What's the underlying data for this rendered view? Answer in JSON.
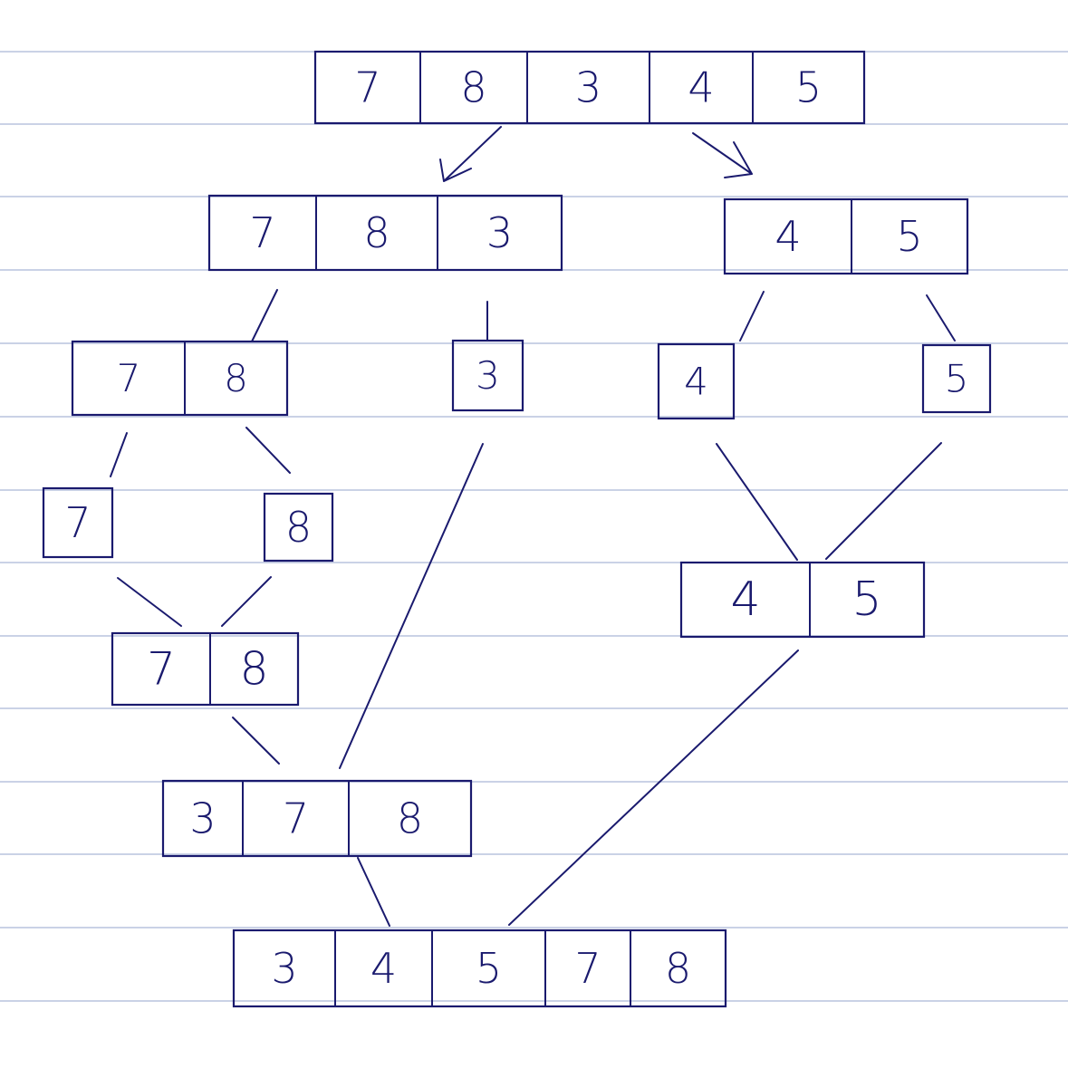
{
  "diagram": {
    "rows": [
      {
        "id": "r0",
        "cells": [
          "7",
          "8",
          "3",
          "4",
          "5"
        ]
      },
      {
        "id": "r1a",
        "cells": [
          "7",
          "8",
          "3"
        ]
      },
      {
        "id": "r1b",
        "cells": [
          "4",
          "5"
        ]
      },
      {
        "id": "r2a",
        "cells": [
          "7",
          "8"
        ]
      },
      {
        "id": "r2b",
        "cells": [
          "3"
        ]
      },
      {
        "id": "r2c",
        "cells": [
          "4"
        ]
      },
      {
        "id": "r2d",
        "cells": [
          "5"
        ]
      },
      {
        "id": "r3a",
        "cells": [
          "7"
        ]
      },
      {
        "id": "r3b",
        "cells": [
          "8"
        ]
      },
      {
        "id": "r4a",
        "cells": [
          "7",
          "8"
        ]
      },
      {
        "id": "r4b",
        "cells": [
          "4",
          "5"
        ]
      },
      {
        "id": "r5",
        "cells": [
          "3",
          "7",
          "8"
        ]
      },
      {
        "id": "r6",
        "cells": [
          "3",
          "4",
          "5",
          "7",
          "8"
        ]
      }
    ],
    "colors": {
      "ink": "#1a1a6e",
      "rule": "#b9c3de"
    }
  }
}
